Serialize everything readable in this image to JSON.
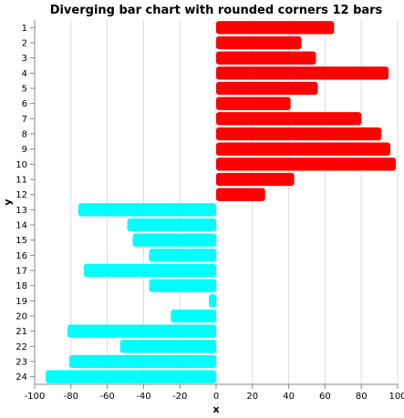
{
  "chart_data": {
    "type": "bar",
    "orientation": "horizontal",
    "title": "Diverging bar chart with rounded corners 12 bars",
    "xlabel": "x",
    "ylabel": "y",
    "xlim": [
      -100,
      100
    ],
    "x_ticks": [
      -100,
      -80,
      -60,
      -40,
      -20,
      0,
      20,
      40,
      60,
      80,
      100
    ],
    "grid": "vertical",
    "categories": [
      "1",
      "2",
      "3",
      "4",
      "5",
      "6",
      "7",
      "8",
      "9",
      "10",
      "11",
      "12",
      "13",
      "14",
      "15",
      "16",
      "17",
      "18",
      "19",
      "20",
      "21",
      "22",
      "23",
      "24"
    ],
    "values": [
      65,
      47,
      55,
      95,
      56,
      41,
      80,
      91,
      96,
      99,
      43,
      27,
      -76,
      -49,
      -46,
      -37,
      -73,
      -37,
      -4,
      -25,
      -82,
      -53,
      -81,
      -94
    ],
    "positive_color": "#ff0000",
    "negative_color": "#00ffff",
    "rounded_corners": true
  }
}
